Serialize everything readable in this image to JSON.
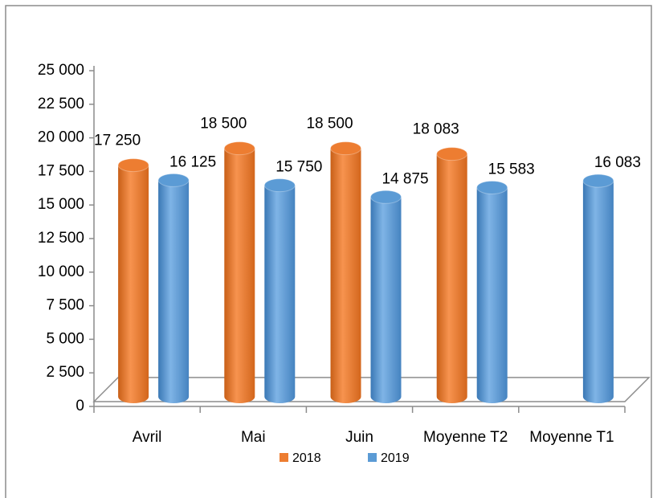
{
  "chart_data": {
    "type": "bar3d",
    "categories": [
      "Avril",
      "Mai",
      "Juin",
      "Moyenne T2",
      "Moyenne T1"
    ],
    "series": [
      {
        "name": "2018",
        "color": "#ed7d31",
        "values": [
          17250,
          18500,
          18500,
          18083,
          null
        ],
        "value_labels": [
          "17 250",
          "18 500",
          "18 500",
          "18 083",
          null
        ]
      },
      {
        "name": "2019",
        "color": "#5b9bd5",
        "values": [
          16125,
          15750,
          14875,
          15583,
          16083
        ],
        "value_labels": [
          "16 125",
          "15 750",
          "14 875",
          "15 583",
          "16 083"
        ]
      }
    ],
    "ylim": [
      0,
      25000
    ],
    "yticks": [
      0,
      {
        "value": 2500,
        "label": "2 500"
      },
      {
        "value": 5000,
        "label": "5 000"
      },
      {
        "value": 7500,
        "label": "7 500"
      },
      {
        "value": 10000,
        "label": "10 000"
      },
      {
        "value": 12500,
        "label": "12 500"
      },
      {
        "value": 15000,
        "label": "15 000"
      },
      {
        "value": 17500,
        "label": "17 500"
      },
      {
        "value": 20000,
        "label": "20 000"
      },
      {
        "value": 22500,
        "label": "22 500"
      },
      {
        "value": 25000,
        "label": "25 000"
      }
    ],
    "legend": "bottom"
  }
}
